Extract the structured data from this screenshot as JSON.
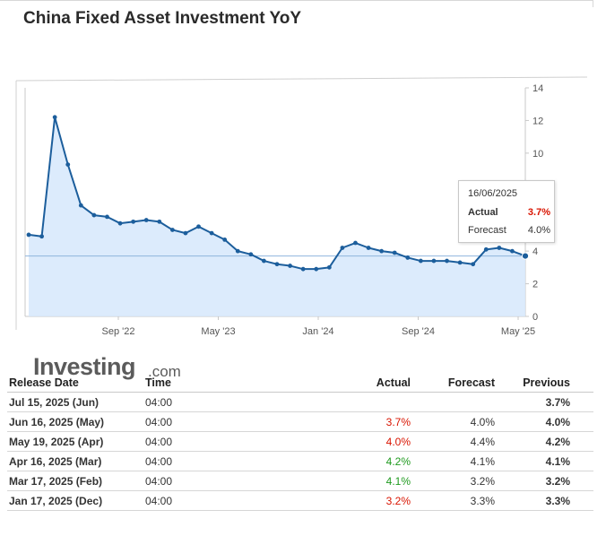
{
  "page": {
    "title": "China Fixed Asset Investment YoY"
  },
  "chart_data": {
    "type": "area",
    "title": "",
    "xlabel": "",
    "ylabel": "",
    "ylim": [
      0,
      14
    ],
    "yticks": [
      "0",
      "2",
      "4",
      "6",
      "8",
      "10",
      "12",
      "14"
    ],
    "xticks": [
      "Sep '22",
      "May '23",
      "Jan '24",
      "Sep '24",
      "May '25"
    ],
    "grid": false,
    "series": [
      {
        "values": [
          5.0,
          4.9,
          12.2,
          9.3,
          6.8,
          6.2,
          6.1,
          5.7,
          5.8,
          5.9,
          5.8,
          5.3,
          5.1,
          5.5,
          5.1,
          4.7,
          4.0,
          3.8,
          3.4,
          3.2,
          3.1,
          2.9,
          2.9,
          3.0,
          4.2,
          4.5,
          4.2,
          4.0,
          3.9,
          3.6,
          3.4,
          3.4,
          3.4,
          3.3,
          3.2,
          4.1,
          4.2,
          4.0,
          3.7
        ]
      }
    ],
    "reference_line": 3.7,
    "tooltip": {
      "date": "16/06/2025",
      "actual_label": "Actual",
      "actual": "3.7%",
      "forecast_label": "Forecast",
      "forecast": "4.0%"
    },
    "colors": {
      "line": "#1c5e9c",
      "fill": "#d6e8fb",
      "ref_line": "#8fb4dd",
      "actual_red": "#d91400",
      "actual_green": "#1f9a1f"
    }
  },
  "logo": {
    "brand": "Investing",
    "tld": ".com"
  },
  "table": {
    "headers": {
      "date": "Release Date",
      "time": "Time",
      "actual": "Actual",
      "forecast": "Forecast",
      "previous": "Previous"
    },
    "rows": [
      {
        "date": "Jul 15, 2025 (Jun)",
        "time": "04:00",
        "actual": "",
        "actual_color": "",
        "forecast": "",
        "previous": "3.7%"
      },
      {
        "date": "Jun 16, 2025 (May)",
        "time": "04:00",
        "actual": "3.7%",
        "actual_color": "red",
        "forecast": "4.0%",
        "previous": "4.0%"
      },
      {
        "date": "May 19, 2025 (Apr)",
        "time": "04:00",
        "actual": "4.0%",
        "actual_color": "red",
        "forecast": "4.4%",
        "previous": "4.2%"
      },
      {
        "date": "Apr 16, 2025 (Mar)",
        "time": "04:00",
        "actual": "4.2%",
        "actual_color": "green",
        "forecast": "4.1%",
        "previous": "4.1%"
      },
      {
        "date": "Mar 17, 2025 (Feb)",
        "time": "04:00",
        "actual": "4.1%",
        "actual_color": "green",
        "forecast": "3.2%",
        "previous": "3.2%"
      },
      {
        "date": "Jan 17, 2025 (Dec)",
        "time": "04:00",
        "actual": "3.2%",
        "actual_color": "red",
        "forecast": "3.3%",
        "previous": "3.3%"
      }
    ]
  }
}
